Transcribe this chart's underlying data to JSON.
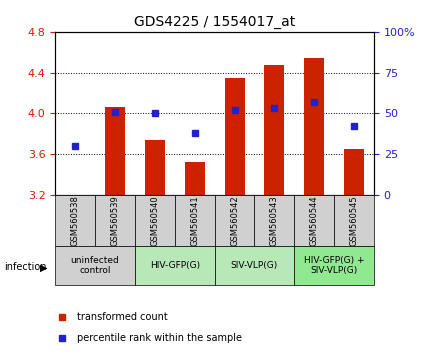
{
  "title": "GDS4225 / 1554017_at",
  "samples": [
    "GSM560538",
    "GSM560539",
    "GSM560540",
    "GSM560541",
    "GSM560542",
    "GSM560543",
    "GSM560544",
    "GSM560545"
  ],
  "transformed_counts": [
    3.18,
    4.06,
    3.74,
    3.52,
    4.35,
    4.47,
    4.54,
    3.65
  ],
  "percentile_ranks": [
    30,
    51,
    50,
    38,
    52,
    53,
    57,
    42
  ],
  "ylim_left": [
    3.2,
    4.8
  ],
  "ylim_right": [
    0,
    100
  ],
  "yticks_left": [
    3.2,
    3.6,
    4.0,
    4.4,
    4.8
  ],
  "yticks_right": [
    0,
    25,
    50,
    75,
    100
  ],
  "bar_color": "#cc2200",
  "dot_color": "#2222cc",
  "bar_bottom": 3.2,
  "group_colors": [
    "#d0d0d0",
    "#d0d0d0",
    "#b8e8b8",
    "#b8e8b8",
    "#b8e8b8",
    "#b8e8b8",
    "#b8e8b8",
    "#90e890"
  ],
  "infection_groups": [
    {
      "label": "uninfected\ncontrol",
      "start": 0,
      "end": 2,
      "color": "#d0d0d0"
    },
    {
      "label": "HIV-GFP(G)",
      "start": 2,
      "end": 4,
      "color": "#b8e8b8"
    },
    {
      "label": "SIV-VLP(G)",
      "start": 4,
      "end": 6,
      "color": "#b8e8b8"
    },
    {
      "label": "HIV-GFP(G) +\nSIV-VLP(G)",
      "start": 6,
      "end": 8,
      "color": "#90e890"
    }
  ],
  "legend_labels": [
    "transformed count",
    "percentile rank within the sample"
  ],
  "infection_label": "infection",
  "background_color": "#ffffff",
  "plot_bg_color": "#ffffff",
  "grid_color": "#000000",
  "tick_color_left": "#cc2200",
  "tick_color_right": "#2222cc"
}
